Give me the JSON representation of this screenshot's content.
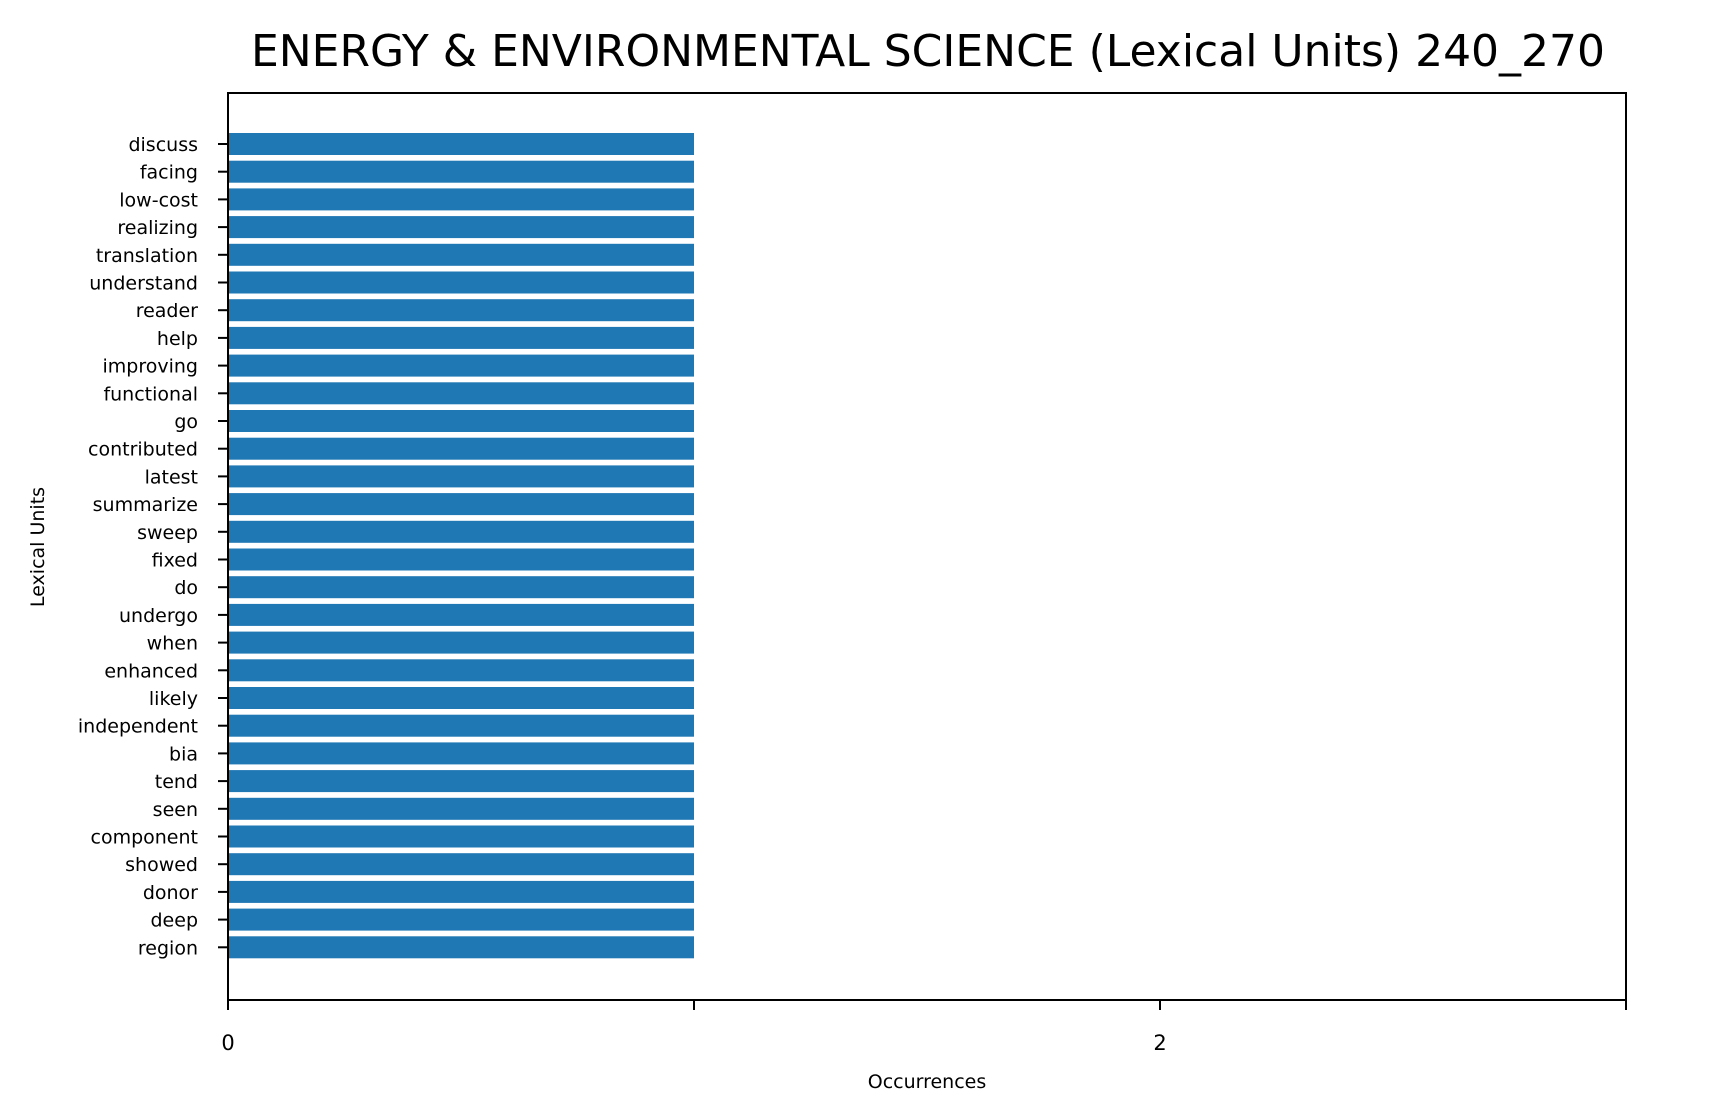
{
  "chart_data": {
    "type": "bar",
    "orientation": "horizontal",
    "title": "ENERGY & ENVIRONMENTAL SCIENCE (Lexical Units) 240_270",
    "xlabel": "Occurrences",
    "ylabel": "Lexical Units",
    "categories": [
      "discuss",
      "facing",
      "low-cost",
      "realizing",
      "translation",
      "understand",
      "reader",
      "help",
      "improving",
      "functional",
      "go",
      "contributed",
      "latest",
      "summarize",
      "sweep",
      "fixed",
      "do",
      "undergo",
      "when",
      "enhanced",
      "likely",
      "independent",
      "bia",
      "tend",
      "seen",
      "component",
      "showed",
      "donor",
      "deep",
      "region"
    ],
    "values": [
      1,
      1,
      1,
      1,
      1,
      1,
      1,
      1,
      1,
      1,
      1,
      1,
      1,
      1,
      1,
      1,
      1,
      1,
      1,
      1,
      1,
      1,
      1,
      1,
      1,
      1,
      1,
      1,
      1,
      1
    ],
    "xlim": [
      0,
      3
    ],
    "xticks": [
      0,
      1,
      2,
      3
    ],
    "xtick_labels": [
      "0",
      "",
      "2",
      ""
    ],
    "grid": false,
    "bar_color": "#1f77b4"
  }
}
